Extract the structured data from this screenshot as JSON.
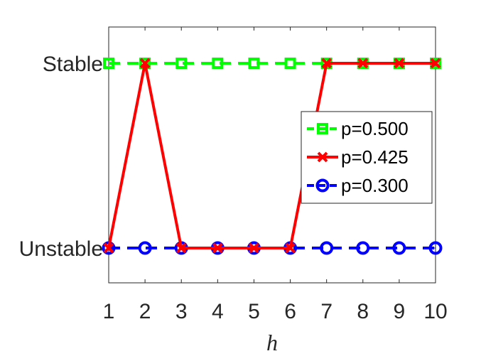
{
  "chart_data": {
    "type": "line",
    "xlabel": "h",
    "ylabel": "",
    "title": "",
    "x": [
      1,
      2,
      3,
      4,
      5,
      6,
      7,
      8,
      9,
      10
    ],
    "xlim": [
      1,
      10
    ],
    "ylim": [
      -0.2,
      1.2
    ],
    "y_categories": [
      {
        "value": 0,
        "label": "Unstable"
      },
      {
        "value": 1,
        "label": "Stable"
      }
    ],
    "legend_position": "right",
    "grid": false,
    "series": [
      {
        "name": "p=0.500",
        "color": "#00ff00",
        "dash": "dashed",
        "marker": "square",
        "values": [
          1,
          1,
          1,
          1,
          1,
          1,
          1,
          1,
          1,
          1
        ]
      },
      {
        "name": "p=0.425",
        "color": "#ff0000",
        "dash": "solid",
        "marker": "x",
        "values": [
          0,
          1,
          0,
          0,
          0,
          0,
          1,
          1,
          1,
          1
        ]
      },
      {
        "name": "p=0.300",
        "color": "#0000ff",
        "dash": "dashed",
        "marker": "circle",
        "values": [
          0,
          0,
          0,
          0,
          0,
          0,
          0,
          0,
          0,
          0
        ]
      }
    ]
  }
}
